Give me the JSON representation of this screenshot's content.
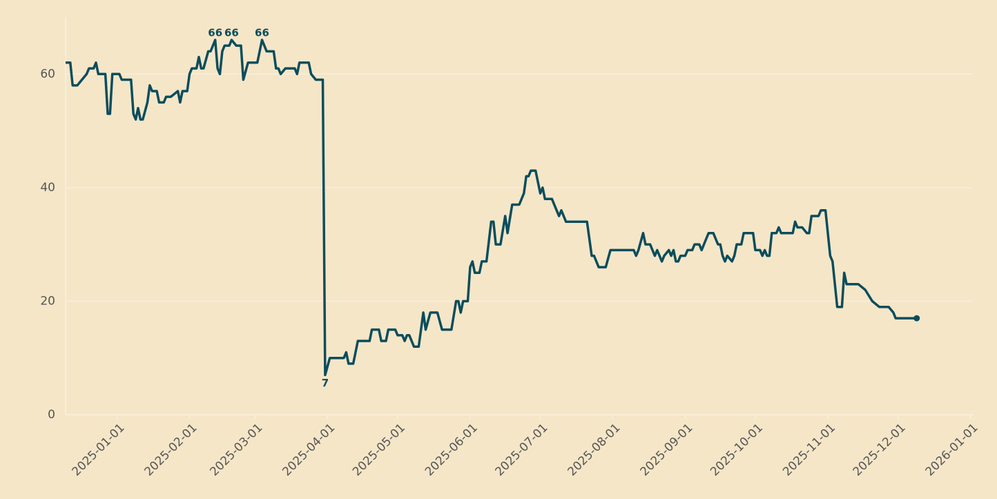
{
  "chart_data": {
    "type": "line",
    "x": [
      "2024-12-10",
      "2024-12-12",
      "2024-12-13",
      "2024-12-15",
      "2024-12-17",
      "2024-12-19",
      "2024-12-20",
      "2024-12-22",
      "2024-12-23",
      "2024-12-24",
      "2024-12-27",
      "2024-12-28",
      "2024-12-29",
      "2024-12-30",
      "2025-01-02",
      "2025-01-03",
      "2025-01-07",
      "2025-01-08",
      "2025-01-09",
      "2025-01-10",
      "2025-01-11",
      "2025-01-12",
      "2025-01-14",
      "2025-01-15",
      "2025-01-16",
      "2025-01-18",
      "2025-01-19",
      "2025-01-21",
      "2025-01-22",
      "2025-01-24",
      "2025-01-27",
      "2025-01-28",
      "2025-01-29",
      "2025-01-31",
      "2025-02-01",
      "2025-02-02",
      "2025-02-04",
      "2025-02-05",
      "2025-02-06",
      "2025-02-07",
      "2025-02-09",
      "2025-02-10",
      "2025-02-12",
      "2025-02-13",
      "2025-02-14",
      "2025-02-15",
      "2025-02-16",
      "2025-02-18",
      "2025-02-19",
      "2025-02-21",
      "2025-02-23",
      "2025-02-24",
      "2025-02-26",
      "2025-03-02",
      "2025-03-04",
      "2025-03-06",
      "2025-03-09",
      "2025-03-10",
      "2025-03-11",
      "2025-03-12",
      "2025-03-14",
      "2025-03-18",
      "2025-03-19",
      "2025-03-20",
      "2025-03-24",
      "2025-03-25",
      "2025-03-27",
      "2025-03-30",
      "2025-03-31",
      "2025-04-02",
      "2025-04-08",
      "2025-04-09",
      "2025-04-10",
      "2025-04-12",
      "2025-04-14",
      "2025-04-19",
      "2025-04-20",
      "2025-04-23",
      "2025-04-24",
      "2025-04-26",
      "2025-04-27",
      "2025-04-30",
      "2025-05-01",
      "2025-05-03",
      "2025-05-04",
      "2025-05-05",
      "2025-05-06",
      "2025-05-08",
      "2025-05-10",
      "2025-05-12",
      "2025-05-13",
      "2025-05-15",
      "2025-05-18",
      "2025-05-20",
      "2025-05-24",
      "2025-05-26",
      "2025-05-27",
      "2025-05-28",
      "2025-05-29",
      "2025-05-31",
      "2025-06-01",
      "2025-06-02",
      "2025-06-03",
      "2025-06-05",
      "2025-06-06",
      "2025-06-08",
      "2025-06-10",
      "2025-06-11",
      "2025-06-12",
      "2025-06-14",
      "2025-06-16",
      "2025-06-17",
      "2025-06-19",
      "2025-06-22",
      "2025-06-24",
      "2025-06-25",
      "2025-06-26",
      "2025-06-27",
      "2025-06-29",
      "2025-07-01",
      "2025-07-02",
      "2025-07-03",
      "2025-07-06",
      "2025-07-08",
      "2025-07-09",
      "2025-07-10",
      "2025-07-12",
      "2025-07-21",
      "2025-07-23",
      "2025-07-24",
      "2025-07-26",
      "2025-07-29",
      "2025-07-31",
      "2025-08-10",
      "2025-08-11",
      "2025-08-12",
      "2025-08-14",
      "2025-08-15",
      "2025-08-17",
      "2025-08-19",
      "2025-08-20",
      "2025-08-22",
      "2025-08-23",
      "2025-08-25",
      "2025-08-26",
      "2025-08-27",
      "2025-08-28",
      "2025-08-29",
      "2025-08-30",
      "2025-09-01",
      "2025-09-02",
      "2025-09-04",
      "2025-09-05",
      "2025-09-07",
      "2025-09-08",
      "2025-09-10",
      "2025-09-11",
      "2025-09-13",
      "2025-09-15",
      "2025-09-16",
      "2025-09-17",
      "2025-09-18",
      "2025-09-19",
      "2025-09-21",
      "2025-09-22",
      "2025-09-23",
      "2025-09-25",
      "2025-09-26",
      "2025-09-30",
      "2025-10-01",
      "2025-10-03",
      "2025-10-04",
      "2025-10-05",
      "2025-10-06",
      "2025-10-07",
      "2025-10-08",
      "2025-10-10",
      "2025-10-11",
      "2025-10-12",
      "2025-10-17",
      "2025-10-18",
      "2025-10-19",
      "2025-10-21",
      "2025-10-23",
      "2025-10-24",
      "2025-10-25",
      "2025-10-28",
      "2025-10-29",
      "2025-10-31",
      "2025-11-02",
      "2025-11-03",
      "2025-11-04",
      "2025-11-05",
      "2025-11-07",
      "2025-11-08",
      "2025-11-09",
      "2025-11-14",
      "2025-11-17",
      "2025-11-20",
      "2025-11-23",
      "2025-11-27",
      "2025-11-29",
      "2025-11-30",
      "2025-12-09"
    ],
    "values": [
      62,
      62,
      58,
      58,
      59,
      60,
      61,
      61,
      62,
      60,
      60,
      53,
      53,
      60,
      60,
      59,
      59,
      53,
      52,
      54,
      52,
      52,
      55,
      58,
      57,
      57,
      55,
      55,
      56,
      56,
      57,
      55,
      57,
      57,
      60,
      61,
      61,
      63,
      61,
      61,
      64,
      64,
      66,
      61,
      60,
      64,
      65,
      65,
      66,
      65,
      65,
      59,
      62,
      62,
      66,
      64,
      64,
      61,
      61,
      60,
      61,
      61,
      60,
      62,
      62,
      60,
      59,
      59,
      7,
      10,
      10,
      11,
      9,
      9,
      13,
      13,
      15,
      15,
      13,
      13,
      15,
      15,
      14,
      14,
      13,
      14,
      14,
      12,
      12,
      18,
      15,
      18,
      18,
      15,
      15,
      20,
      20,
      18,
      20,
      20,
      26,
      27,
      25,
      25,
      27,
      27,
      34,
      34,
      30,
      30,
      35,
      32,
      37,
      37,
      39,
      42,
      42,
      43,
      43,
      39,
      40,
      38,
      38,
      36,
      35,
      36,
      34,
      34,
      28,
      28,
      26,
      26,
      29,
      29,
      28,
      29,
      32,
      30,
      30,
      28,
      29,
      27,
      28,
      29,
      28,
      29,
      27,
      27,
      28,
      28,
      29,
      29,
      30,
      30,
      29,
      31,
      32,
      32,
      30,
      30,
      28,
      27,
      28,
      27,
      28,
      30,
      30,
      32,
      32,
      29,
      29,
      28,
      29,
      28,
      28,
      32,
      32,
      33,
      32,
      32,
      34,
      33,
      33,
      32,
      32,
      35,
      35,
      36,
      36,
      28,
      27,
      23,
      19,
      19,
      25,
      23,
      23,
      22,
      20,
      19,
      19,
      18,
      17,
      17
    ],
    "color": "#0a4d5c",
    "end_marker": true,
    "annotations": [
      {
        "x": "2025-02-12",
        "y": 66
      },
      {
        "x": "2025-02-19",
        "y": 66
      },
      {
        "x": "2025-03-04",
        "y": 66
      },
      {
        "x": "2025-03-31",
        "y": 7
      }
    ],
    "xlim": [
      "2024-12-10",
      "2026-01-02"
    ],
    "xticks": [
      "2025-01-01",
      "2025-02-01",
      "2025-03-01",
      "2025-04-01",
      "2025-05-01",
      "2025-06-01",
      "2025-07-01",
      "2025-08-01",
      "2025-09-01",
      "2025-10-01",
      "2025-11-01",
      "2025-12-01",
      "2026-01-01"
    ],
    "ylim": [
      0,
      70
    ],
    "yticks": [
      0,
      20,
      40,
      60
    ],
    "grid": true
  }
}
